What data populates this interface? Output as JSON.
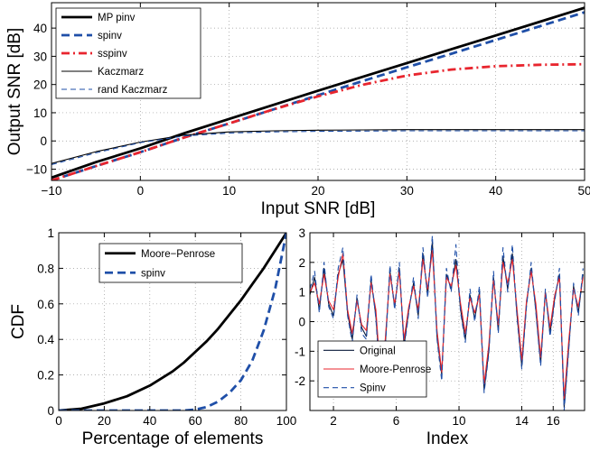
{
  "chart_data": [
    {
      "id": "top",
      "type": "line",
      "xlabel": "Input SNR [dB]",
      "ylabel": "Output SNR [dB]",
      "xlim": [
        -10,
        50
      ],
      "ylim": [
        -14,
        49
      ],
      "xticks": [
        -10,
        0,
        10,
        20,
        30,
        40,
        50
      ],
      "xtick_labels": [
        "−10",
        "0",
        "10",
        "20",
        "30",
        "40",
        "50"
      ],
      "yticks": [
        -10,
        0,
        10,
        20,
        30,
        40
      ],
      "ytick_labels": [
        "−10",
        "0",
        "10",
        "20",
        "30",
        "40"
      ],
      "grid": true,
      "legend_position": "top-left",
      "x": [
        -10,
        -5,
        0,
        5,
        10,
        15,
        20,
        25,
        30,
        35,
        40,
        45,
        50
      ],
      "series": [
        {
          "name": "MP pinv",
          "style": "solid-thick",
          "color": "#000000",
          "values": [
            -13,
            -7.5,
            -2.6,
            2.8,
            7.8,
            12.8,
            17.8,
            22.7,
            27.6,
            32.5,
            37.4,
            42.3,
            47.2
          ]
        },
        {
          "name": "spinv",
          "style": "dashed-thick",
          "color": "#1f4fa8",
          "values": [
            -14,
            -8.9,
            -4,
            1.3,
            6.2,
            11.2,
            16.2,
            21.2,
            26.1,
            30.9,
            35.8,
            40.7,
            45.6
          ]
        },
        {
          "name": "sspinv",
          "style": "dashdot-thick",
          "color": "#e8252e",
          "values": [
            -14,
            -8.9,
            -4,
            1.3,
            6.2,
            11.2,
            15.8,
            19.9,
            23.2,
            25.3,
            26.5,
            27,
            27.2
          ]
        },
        {
          "name": "Kaczmarz",
          "style": "solid-thin",
          "color": "#000000",
          "values": [
            -8,
            -3.8,
            -0.4,
            2.1,
            3.2,
            3.6,
            3.8,
            3.9,
            4,
            4,
            4,
            4,
            4
          ]
        },
        {
          "name": "rand Kaczmarz",
          "style": "dashed-thin",
          "color": "#1f4fa8",
          "values": [
            -8.4,
            -4.2,
            -0.6,
            1.8,
            2.8,
            3.2,
            3.4,
            3.5,
            3.6,
            3.6,
            3.6,
            3.6,
            3.6
          ]
        }
      ]
    },
    {
      "id": "bottom-left",
      "type": "line",
      "xlabel": "Percentage of elements",
      "ylabel": "CDF",
      "xlim": [
        0,
        100
      ],
      "ylim": [
        0,
        1
      ],
      "xticks": [
        0,
        20,
        40,
        60,
        80,
        100
      ],
      "xtick_labels": [
        "0",
        "20",
        "40",
        "60",
        "80",
        "100"
      ],
      "yticks": [
        0,
        0.2,
        0.4,
        0.6,
        0.8,
        1
      ],
      "ytick_labels": [
        "0",
        "0.2",
        "0.4",
        "0.6",
        "0.8",
        "1"
      ],
      "grid": true,
      "legend_position": "top-center",
      "x": [
        0,
        10,
        20,
        30,
        40,
        50,
        55,
        60,
        65,
        70,
        75,
        80,
        85,
        90,
        95,
        100
      ],
      "series": [
        {
          "name": "Moore−Penrose",
          "style": "solid-thick",
          "color": "#000000",
          "values": [
            0,
            0.01,
            0.04,
            0.08,
            0.14,
            0.22,
            0.27,
            0.33,
            0.39,
            0.46,
            0.54,
            0.62,
            0.71,
            0.8,
            0.9,
            1.0
          ]
        },
        {
          "name": "spinv",
          "style": "dashed-thick",
          "color": "#1f4fa8",
          "values": [
            0,
            0,
            0,
            0,
            0,
            0,
            0,
            0.005,
            0.02,
            0.05,
            0.1,
            0.17,
            0.28,
            0.45,
            0.68,
            1.0
          ]
        }
      ]
    },
    {
      "id": "bottom-right",
      "type": "line",
      "xlabel": "Index",
      "ylabel": "",
      "xlim": [
        0.5,
        18
      ],
      "ylim": [
        -3,
        3
      ],
      "xticks": [
        2,
        6,
        10,
        14,
        16
      ],
      "xtick_labels": [
        "2",
        "6",
        "10",
        "14",
        "16"
      ],
      "yticks": [
        -2,
        -1,
        0,
        1,
        2,
        3
      ],
      "ytick_labels": [
        "-2",
        "-1",
        "0",
        "1",
        "2",
        "3"
      ],
      "grid": true,
      "legend_position": "bottom-left",
      "x": [
        0.5,
        0.8,
        1.1,
        1.4,
        1.7,
        2.0,
        2.3,
        2.6,
        2.9,
        3.2,
        3.5,
        3.8,
        4.1,
        4.4,
        4.7,
        5.0,
        5.3,
        5.6,
        5.9,
        6.2,
        6.5,
        6.8,
        7.1,
        7.4,
        7.7,
        8.0,
        8.3,
        8.6,
        8.9,
        9.2,
        9.5,
        9.8,
        10.1,
        10.4,
        10.7,
        11.0,
        11.3,
        11.6,
        11.9,
        12.2,
        12.5,
        12.8,
        13.1,
        13.4,
        13.7,
        14.0,
        14.3,
        14.6,
        14.9,
        15.2,
        15.5,
        15.8,
        16.1,
        16.4,
        16.7,
        17.0,
        17.3,
        17.6,
        17.9
      ],
      "series": [
        {
          "name": "Original",
          "style": "solid-thin",
          "color": "#0a1a3a",
          "values": [
            0.9,
            1.5,
            0.4,
            1.8,
            0.6,
            0.2,
            1.6,
            2.1,
            0.3,
            -0.6,
            0.8,
            -0.2,
            -0.5,
            1.4,
            0.2,
            -2.0,
            -0.8,
            1.7,
            0.5,
            1.8,
            -0.8,
            0.4,
            1.3,
            0.2,
            2.3,
            0.9,
            2.7,
            -0.5,
            -1.8,
            1.6,
            1.1,
            2.1,
            0.4,
            -0.6,
            0.9,
            0.1,
            1.0,
            -2.3,
            -1.0,
            1.5,
            -0.3,
            2.2,
            1.1,
            2.3,
            0.2,
            -1.5,
            0.6,
            1.8,
            0.4,
            -1.4,
            1.0,
            -0.4,
            0.8,
            1.6,
            -2.9,
            -0.8,
            1.2,
            0.3,
            1.6
          ]
        },
        {
          "name": "Moore-Penrose",
          "style": "solid-thin",
          "color": "#e8252e",
          "values": [
            1.0,
            1.3,
            0.6,
            1.6,
            0.7,
            0.4,
            1.5,
            2.3,
            0.4,
            -0.4,
            0.7,
            -0.1,
            -0.3,
            1.3,
            0.4,
            -1.8,
            -0.6,
            1.6,
            0.6,
            1.7,
            -0.6,
            0.5,
            1.2,
            0.4,
            2.1,
            1.1,
            2.4,
            -0.3,
            -1.7,
            1.5,
            1.2,
            1.9,
            0.6,
            -0.4,
            0.8,
            0.3,
            0.9,
            -2.1,
            -0.8,
            1.4,
            -0.1,
            2.0,
            1.3,
            2.1,
            0.4,
            -1.3,
            0.7,
            1.7,
            0.6,
            -1.2,
            1.0,
            -0.2,
            0.9,
            1.5,
            -2.6,
            -0.6,
            1.1,
            0.5,
            1.5
          ]
        },
        {
          "name": "Spinv",
          "style": "dashed-thin",
          "color": "#1f4fa8",
          "values": [
            1.1,
            1.7,
            0.3,
            2.0,
            0.5,
            0.1,
            1.8,
            2.5,
            0.2,
            -0.7,
            0.9,
            -0.4,
            -0.6,
            1.6,
            0.1,
            -2.2,
            -0.9,
            1.9,
            0.4,
            2.0,
            -0.9,
            0.3,
            1.5,
            0.1,
            2.5,
            0.8,
            2.9,
            -0.6,
            -2.0,
            1.8,
            1.0,
            2.6,
            0.3,
            -0.7,
            1.1,
            0.0,
            1.2,
            -2.4,
            -1.1,
            1.7,
            -0.4,
            2.5,
            1.0,
            2.6,
            0.1,
            -1.6,
            0.5,
            2.0,
            0.3,
            -1.5,
            1.1,
            -0.5,
            0.7,
            1.8,
            -3.0,
            -0.9,
            1.3,
            0.2,
            1.8
          ]
        }
      ]
    }
  ]
}
